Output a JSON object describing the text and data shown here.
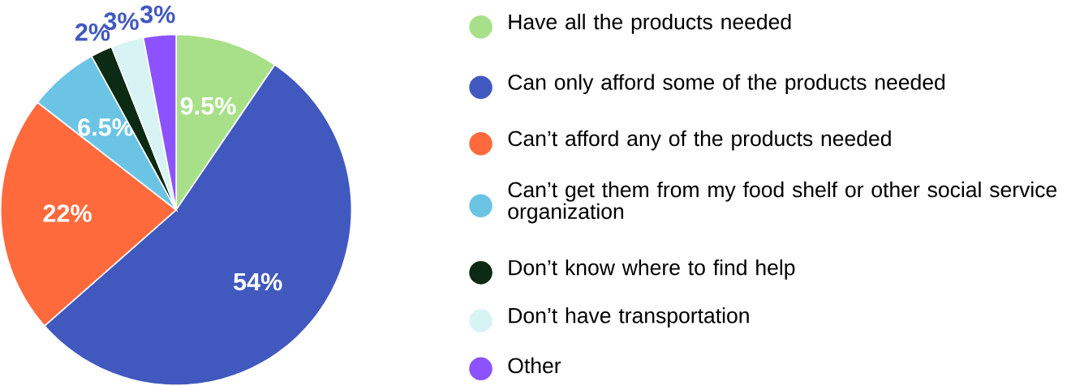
{
  "chart_data": {
    "type": "pie",
    "categories": [
      "Have all the products needed",
      "Can only afford some of the products needed",
      "Can’t afford any of the products needed",
      "Can’t get them from my food shelf or other social service organization",
      "Don’t know where to find help",
      "Don’t have transportation",
      "Other"
    ],
    "values": [
      9.5,
      54,
      22,
      6.5,
      2,
      3,
      3
    ],
    "colors": [
      "#a8e08a",
      "#4159be",
      "#ff6a3d",
      "#6cc4e4",
      "#0c2a14",
      "#d8f3f3",
      "#8c52ff"
    ],
    "value_labels": [
      "9.5%",
      "54%",
      "22%",
      "6.5%",
      "2%",
      "3%",
      "3%"
    ],
    "legend": "right"
  }
}
